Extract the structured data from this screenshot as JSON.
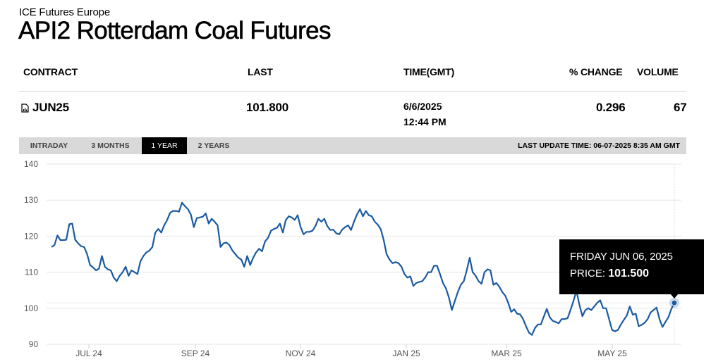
{
  "header": {
    "exchange": "ICE Futures Europe",
    "title": "API2 Rotterdam Coal Futures"
  },
  "table": {
    "columns": [
      "CONTRACT",
      "LAST",
      "TIME(GMT)",
      "% CHANGE",
      "VOLUME"
    ],
    "row": {
      "contract": "JUN25",
      "contract_icon": "chart-document-icon",
      "last": "101.800",
      "date": "6/6/2025",
      "time": "12:44 PM",
      "pct_change": "0.296",
      "volume": "67"
    }
  },
  "range_tabs": {
    "items": [
      "INTRADAY",
      "3 MONTHS",
      "1 YEAR",
      "2 YEARS"
    ],
    "active": "1 YEAR",
    "last_update": "LAST UPDATE TIME: 06-07-2025 8:35 AM GMT"
  },
  "tooltip": {
    "date": "FRIDAY JUN 06, 2025",
    "price_label": "PRICE:",
    "price_value": "101.500"
  },
  "colors": {
    "line": "#1b5aa0",
    "grid": "#e6e6e6",
    "tab_bar": "#d9d9d9",
    "tab_active": "#000000",
    "tooltip_bg": "#000000"
  },
  "chart_data": {
    "type": "line",
    "title": "API2 Rotterdam Coal Futures — JUN25 (1 Year)",
    "xlabel": "",
    "ylabel": "",
    "ylim": [
      90,
      140
    ],
    "yticks": [
      90,
      100,
      110,
      120,
      130,
      140
    ],
    "xticks": [
      "JUL 24",
      "SEP 24",
      "NOV 24",
      "JAN 25",
      "MAR 25",
      "MAY 25"
    ],
    "grid": true,
    "legend": "none",
    "series": [
      {
        "name": "Price",
        "x_start": "2024-06",
        "x_end": "2025-06-06",
        "values": [
          117.0,
          117.5,
          120.2,
          118.9,
          118.9,
          119.0,
          123.3,
          123.5,
          119.0,
          118.0,
          117.2,
          117.0,
          115.0,
          112.0,
          111.3,
          110.5,
          111.0,
          114.5,
          111.5,
          110.8,
          110.5,
          108.5,
          107.5,
          109.0,
          110.0,
          111.5,
          109.0,
          110.5,
          110.0,
          109.5,
          113.0,
          114.5,
          115.5,
          116.0,
          117.0,
          121.0,
          122.0,
          121.0,
          123.0,
          124.5,
          126.5,
          127.0,
          127.0,
          126.8,
          129.3,
          128.3,
          127.5,
          126.0,
          122.5,
          125.0,
          125.2,
          125.4,
          126.3,
          123.5,
          124.8,
          124.0,
          123.0,
          117.0,
          118.0,
          118.2,
          117.5,
          116.0,
          115.0,
          114.0,
          113.5,
          111.5,
          114.5,
          112.0,
          114.0,
          115.5,
          116.5,
          115.8,
          118.5,
          119.5,
          121.5,
          122.0,
          122.3,
          123.5,
          121.0,
          124.5,
          125.5,
          125.2,
          124.5,
          125.8,
          122.5,
          120.5,
          121.2,
          121.2,
          121.5,
          122.8,
          124.8,
          124.0,
          124.8,
          122.8,
          121.7,
          121.8,
          120.8,
          120.5,
          121.8,
          122.5,
          123.0,
          121.7,
          124.0,
          126.0,
          127.5,
          125.5,
          127.0,
          125.8,
          125.5,
          124.0,
          123.2,
          122.0,
          119.0,
          115.0,
          113.5,
          112.5,
          112.8,
          112.5,
          111.5,
          109.5,
          108.5,
          108.8,
          106.2,
          107.0,
          107.3,
          107.5,
          108.5,
          110.0,
          110.0,
          111.8,
          111.8,
          109.5,
          107.0,
          105.5,
          103.0,
          99.5,
          102.0,
          104.5,
          106.5,
          107.5,
          110.5,
          114.0,
          110.0,
          109.0,
          107.5,
          106.8,
          110.0,
          110.8,
          110.5,
          106.5,
          107.0,
          106.0,
          104.5,
          103.5,
          101.5,
          99.0,
          99.7,
          98.5,
          98.3,
          97.0,
          95.0,
          93.2,
          92.6,
          94.5,
          95.5,
          95.5,
          97.7,
          99.8,
          97.5,
          96.5,
          96.2,
          95.8,
          97.0,
          97.0,
          97.2,
          99.5,
          102.0,
          104.8,
          101.0,
          97.8,
          99.5,
          100.0,
          99.5,
          100.5,
          101.5,
          102.2,
          100.0,
          100.0,
          97.0,
          94.0,
          93.6,
          94.0,
          95.5,
          96.8,
          98.0,
          100.5,
          98.2,
          98.5,
          95.0,
          95.4,
          96.0,
          97.0,
          98.8,
          99.5,
          100.2,
          97.0,
          94.8,
          96.2,
          97.5,
          99.8,
          101.5
        ]
      }
    ],
    "highlighted_point": {
      "date": "FRIDAY JUN 06, 2025",
      "price": 101.5
    }
  }
}
